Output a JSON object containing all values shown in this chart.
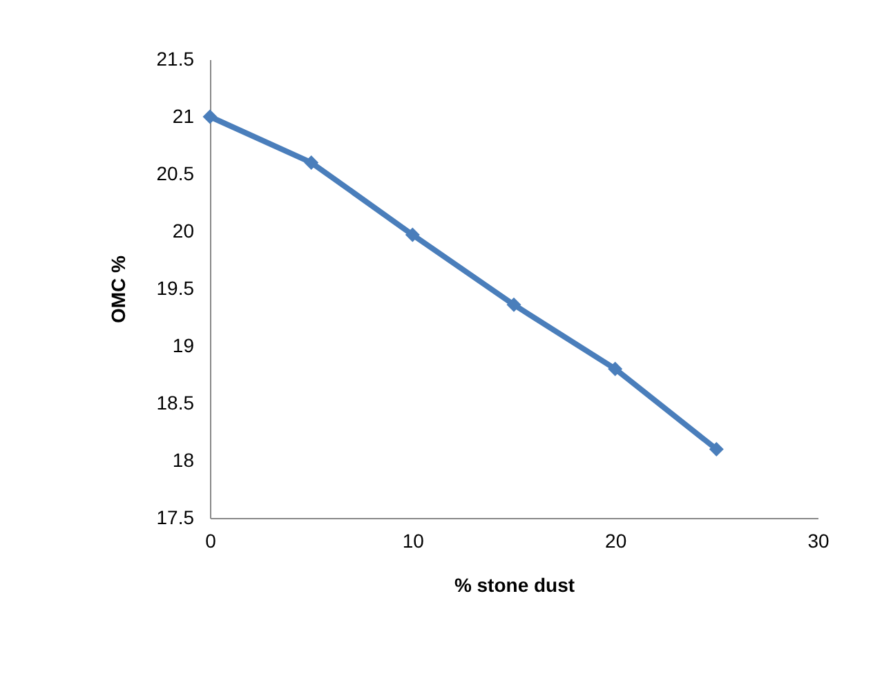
{
  "chart_data": {
    "type": "line",
    "xlabel": "% stone dust",
    "ylabel": "OMC %",
    "x": [
      0,
      5,
      10,
      15,
      20,
      25
    ],
    "series": [
      {
        "color": "#4a7ebb",
        "values": [
          21,
          20.6,
          19.97,
          19.36,
          18.8,
          18.1
        ]
      }
    ],
    "xlim": [
      0,
      30
    ],
    "xticks": [
      0,
      10,
      20,
      30
    ],
    "ylim": [
      17.5,
      21.5
    ],
    "yticks": [
      17.5,
      18,
      18.5,
      19,
      19.5,
      20,
      20.5,
      21,
      21.5
    ],
    "grid": false,
    "marker": "diamond",
    "line_style": "solid"
  }
}
